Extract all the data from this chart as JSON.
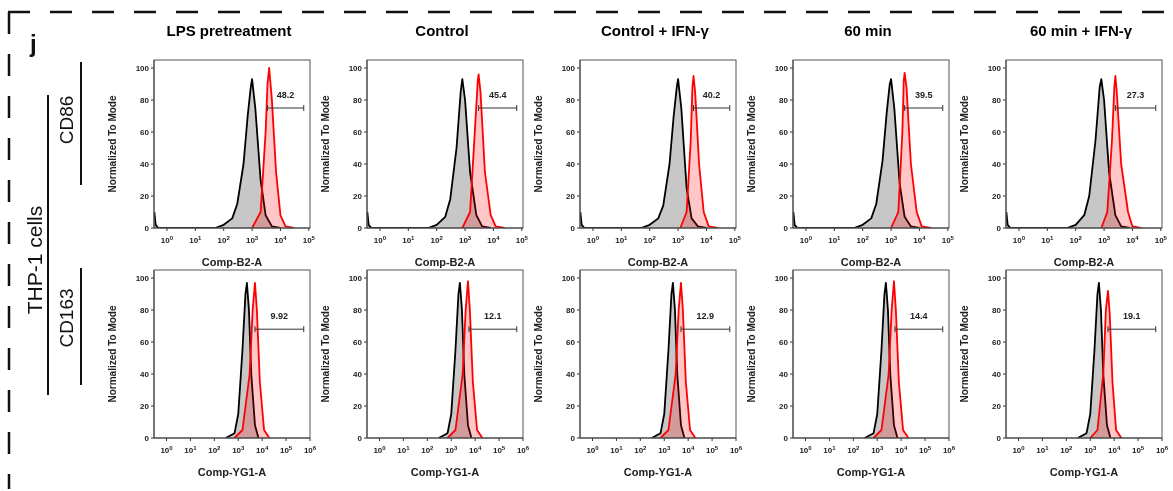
{
  "chart_data": [
    {
      "type": "area",
      "title": "LPS pretreatment",
      "xlabel": "Comp-B2-A",
      "ylabel": "Normalized To Mode",
      "log": "x",
      "xlim": [
        0.35,
        110000
      ],
      "xticks": [
        {
          "value": 1,
          "label": "10$^{0}$"
        },
        {
          "value": 10,
          "label": "10$^{1}$"
        },
        {
          "value": 100,
          "label": "10$^{2}$"
        },
        {
          "value": 1000,
          "label": "10$^{3}$"
        },
        {
          "value": 10000,
          "label": "10$^{4}$"
        },
        {
          "value": 100000,
          "label": "10$^{5}$"
        }
      ],
      "ylim": [
        0,
        105
      ],
      "yticks": [
        0,
        20,
        40,
        60,
        80,
        100
      ],
      "series": [
        {
          "color": "#000000",
          "x": [
            0.36,
            0.4,
            0.5,
            50,
            100,
            200,
            300,
            500,
            700,
            900,
            1000,
            1300,
            2000,
            3000,
            5000,
            10000
          ],
          "values": [
            10,
            2,
            0,
            0,
            2,
            6,
            15,
            40,
            70,
            88,
            93,
            75,
            30,
            8,
            1,
            0
          ]
        },
        {
          "color": "#ff0000",
          "x": [
            1000,
            2000,
            3000,
            3500,
            4000,
            5000,
            7000,
            10000,
            15000,
            30000
          ],
          "values": [
            0,
            10,
            60,
            90,
            100,
            80,
            35,
            8,
            1,
            0
          ]
        }
      ],
      "annotations": [
        "j",
        "THP-1 cells",
        "CD86",
        {
          "text": "48.2",
          "x": 3500,
          "y": 75
        }
      ]
    },
    {
      "type": "area",
      "title": "Control",
      "xlabel": "Comp-B2-A",
      "ylabel": "Normalized To Mode",
      "log": "x",
      "xlim": [
        0.35,
        110000
      ],
      "xticks": [
        {
          "value": 1,
          "label": "10$^{0}$"
        },
        {
          "value": 10,
          "label": "10$^{1}$"
        },
        {
          "value": 100,
          "label": "10$^{2}$"
        },
        {
          "value": 1000,
          "label": "10$^{3}$"
        },
        {
          "value": 10000,
          "label": "10$^{4}$"
        },
        {
          "value": 100000,
          "label": "10$^{5}$"
        }
      ],
      "ylim": [
        0,
        105
      ],
      "yticks": [
        0,
        20,
        40,
        60,
        80,
        100
      ],
      "series": [
        {
          "color": "#000000",
          "x": [
            0.36,
            0.4,
            0.5,
            50,
            100,
            200,
            300,
            500,
            700,
            800,
            1000,
            1500,
            2500,
            4000,
            8000
          ],
          "values": [
            10,
            2,
            0,
            0,
            2,
            7,
            18,
            50,
            85,
            93,
            80,
            35,
            8,
            1,
            0
          ]
        },
        {
          "color": "#ff0000",
          "x": [
            800,
            1500,
            2200,
            2800,
            3000,
            3500,
            5000,
            8000,
            12000,
            25000
          ],
          "values": [
            0,
            10,
            60,
            92,
            96,
            85,
            35,
            8,
            1,
            0
          ]
        }
      ],
      "annotations": [
        {
          "text": "45.4",
          "x": 3000,
          "y": 75
        }
      ]
    },
    {
      "type": "area",
      "title": "Control + IFN-γ",
      "xlabel": "Comp-B2-A",
      "ylabel": "Normalized To Mode",
      "log": "x",
      "xlim": [
        0.35,
        110000
      ],
      "xticks": [
        {
          "value": 1,
          "label": "10$^{0}$"
        },
        {
          "value": 10,
          "label": "10$^{1}$"
        },
        {
          "value": 100,
          "label": "10$^{2}$"
        },
        {
          "value": 1000,
          "label": "10$^{3}$"
        },
        {
          "value": 10000,
          "label": "10$^{4}$"
        },
        {
          "value": 100000,
          "label": "10$^{5}$"
        }
      ],
      "ylim": [
        0,
        105
      ],
      "yticks": [
        0,
        20,
        40,
        60,
        80,
        100
      ],
      "series": [
        {
          "color": "#000000",
          "x": [
            0.36,
            0.4,
            0.5,
            50,
            100,
            200,
            300,
            500,
            700,
            900,
            1000,
            1300,
            2000,
            3000,
            5000,
            10000
          ],
          "values": [
            10,
            2,
            0,
            0,
            2,
            6,
            14,
            40,
            70,
            88,
            93,
            75,
            25,
            6,
            1,
            0
          ]
        },
        {
          "color": "#ff0000",
          "x": [
            1200,
            2000,
            2800,
            3200,
            3500,
            4000,
            5500,
            8000,
            12000,
            25000
          ],
          "values": [
            0,
            10,
            55,
            88,
            95,
            85,
            40,
            10,
            1,
            0
          ]
        }
      ],
      "annotations": [
        {
          "text": "40.2",
          "x": 3500,
          "y": 75
        }
      ]
    },
    {
      "type": "area",
      "title": "60 min",
      "xlabel": "Comp-B2-A",
      "ylabel": "Normalized To Mode",
      "log": "x",
      "xlim": [
        0.35,
        110000
      ],
      "xticks": [
        {
          "value": 1,
          "label": "10$^{0}$"
        },
        {
          "value": 10,
          "label": "10$^{1}$"
        },
        {
          "value": 100,
          "label": "10$^{2}$"
        },
        {
          "value": 1000,
          "label": "10$^{3}$"
        },
        {
          "value": 10000,
          "label": "10$^{4}$"
        },
        {
          "value": 100000,
          "label": "10$^{5}$"
        }
      ],
      "ylim": [
        0,
        105
      ],
      "yticks": [
        0,
        20,
        40,
        60,
        80,
        100
      ],
      "series": [
        {
          "color": "#000000",
          "x": [
            0.36,
            0.4,
            0.5,
            50,
            100,
            200,
            300,
            500,
            700,
            900,
            1000,
            1300,
            2000,
            3000,
            5000,
            10000
          ],
          "values": [
            10,
            2,
            0,
            0,
            2,
            6,
            15,
            42,
            72,
            90,
            93,
            75,
            28,
            7,
            1,
            0
          ]
        },
        {
          "color": "#ff0000",
          "x": [
            1000,
            1800,
            2500,
            2800,
            3000,
            3500,
            5000,
            8000,
            12000,
            25000
          ],
          "values": [
            0,
            10,
            60,
            92,
            97,
            88,
            40,
            10,
            1,
            0
          ]
        }
      ],
      "annotations": [
        {
          "text": "39.5",
          "x": 3000,
          "y": 75
        }
      ]
    },
    {
      "type": "area",
      "title": "60 min + IFN-γ",
      "xlabel": "Comp-B2-A",
      "ylabel": "Normalized To Mode",
      "log": "x",
      "xlim": [
        0.35,
        110000
      ],
      "xticks": [
        {
          "value": 1,
          "label": "10$^{0}$"
        },
        {
          "value": 10,
          "label": "10$^{1}$"
        },
        {
          "value": 100,
          "label": "10$^{2}$"
        },
        {
          "value": 1000,
          "label": "10$^{3}$"
        },
        {
          "value": 10000,
          "label": "10$^{4}$"
        },
        {
          "value": 100000,
          "label": "10$^{5}$"
        }
      ],
      "ylim": [
        0,
        105
      ],
      "yticks": [
        0,
        20,
        40,
        60,
        80,
        100
      ],
      "series": [
        {
          "color": "#000000",
          "x": [
            0.36,
            0.4,
            0.5,
            50,
            100,
            200,
            300,
            500,
            700,
            800,
            1000,
            1500,
            2500,
            4000,
            8000
          ],
          "values": [
            10,
            2,
            0,
            0,
            2,
            8,
            20,
            55,
            88,
            93,
            80,
            35,
            8,
            1,
            0
          ]
        },
        {
          "color": "#ff0000",
          "x": [
            800,
            1300,
            1900,
            2300,
            2500,
            2800,
            4000,
            7000,
            10000,
            20000
          ],
          "values": [
            0,
            10,
            55,
            88,
            95,
            85,
            40,
            10,
            1,
            0
          ]
        }
      ],
      "annotations": [
        {
          "text": "27.3",
          "x": 2500,
          "y": 75
        }
      ]
    },
    {
      "type": "area",
      "xlabel": "Comp-YG1-A",
      "ylabel": "Normalized To Mode",
      "log": "x",
      "xlim": [
        0.3,
        1000000
      ],
      "xticks": [
        {
          "value": 1,
          "label": "10$^{0}$"
        },
        {
          "value": 10,
          "label": "10$^{1}$"
        },
        {
          "value": 100,
          "label": "10$^{2}$"
        },
        {
          "value": 1000,
          "label": "10$^{3}$"
        },
        {
          "value": 10000,
          "label": "10$^{4}$"
        },
        {
          "value": 100000,
          "label": "10$^{5}$"
        },
        {
          "value": 1000000,
          "label": "10$^{6}$"
        }
      ],
      "ylim": [
        0,
        105
      ],
      "yticks": [
        0,
        20,
        40,
        60,
        80,
        100
      ],
      "series": [
        {
          "color": "#000000",
          "x": [
            300,
            700,
            1000,
            1500,
            2000,
            2300,
            2800,
            3500,
            5000,
            7000
          ],
          "values": [
            0,
            3,
            15,
            55,
            90,
            97,
            80,
            40,
            8,
            0
          ]
        },
        {
          "color": "#ff0000",
          "x": [
            700,
            1500,
            3000,
            4000,
            5000,
            6000,
            8000,
            12000,
            20000
          ],
          "values": [
            0,
            5,
            40,
            80,
            97,
            80,
            35,
            5,
            0
          ]
        }
      ],
      "annotations": [
        "CD163",
        {
          "text": "9.92",
          "x": 5000,
          "y": 68
        }
      ]
    },
    {
      "type": "area",
      "xlabel": "Comp-YG1-A",
      "ylabel": "Normalized To Mode",
      "log": "x",
      "xlim": [
        0.3,
        1000000
      ],
      "xticks": [
        {
          "value": 1,
          "label": "10$^{0}$"
        },
        {
          "value": 10,
          "label": "10$^{1}$"
        },
        {
          "value": 100,
          "label": "10$^{2}$"
        },
        {
          "value": 1000,
          "label": "10$^{3}$"
        },
        {
          "value": 10000,
          "label": "10$^{4}$"
        },
        {
          "value": 100000,
          "label": "10$^{5}$"
        },
        {
          "value": 1000000,
          "label": "10$^{6}$"
        }
      ],
      "ylim": [
        0,
        105
      ],
      "yticks": [
        0,
        20,
        40,
        60,
        80,
        100
      ],
      "series": [
        {
          "color": "#000000",
          "x": [
            300,
            700,
            1000,
            1500,
            2000,
            2300,
            2800,
            3500,
            5000,
            7000
          ],
          "values": [
            0,
            3,
            15,
            55,
            90,
            97,
            80,
            40,
            8,
            0
          ]
        },
        {
          "color": "#ff0000",
          "x": [
            700,
            1500,
            3000,
            4000,
            5000,
            6000,
            8000,
            12000,
            20000
          ],
          "values": [
            0,
            5,
            40,
            80,
            98,
            80,
            35,
            5,
            0
          ]
        }
      ],
      "annotations": [
        {
          "text": "12.1",
          "x": 5500,
          "y": 68
        }
      ]
    },
    {
      "type": "area",
      "xlabel": "Comp-YG1-A",
      "ylabel": "Normalized To Mode",
      "log": "x",
      "xlim": [
        0.3,
        1000000
      ],
      "xticks": [
        {
          "value": 1,
          "label": "10$^{0}$"
        },
        {
          "value": 10,
          "label": "10$^{1}$"
        },
        {
          "value": 100,
          "label": "10$^{2}$"
        },
        {
          "value": 1000,
          "label": "10$^{3}$"
        },
        {
          "value": 10000,
          "label": "10$^{4}$"
        },
        {
          "value": 100000,
          "label": "10$^{5}$"
        },
        {
          "value": 1000000,
          "label": "10$^{6}$"
        }
      ],
      "ylim": [
        0,
        105
      ],
      "yticks": [
        0,
        20,
        40,
        60,
        80,
        100
      ],
      "series": [
        {
          "color": "#000000",
          "x": [
            300,
            700,
            1000,
            1500,
            2000,
            2300,
            2800,
            3500,
            5000,
            7000
          ],
          "values": [
            0,
            3,
            15,
            55,
            90,
            97,
            80,
            40,
            8,
            0
          ]
        },
        {
          "color": "#ff0000",
          "x": [
            700,
            1500,
            3000,
            4000,
            5000,
            6000,
            8000,
            12000,
            20000
          ],
          "values": [
            0,
            5,
            40,
            80,
            97,
            80,
            35,
            5,
            0
          ]
        }
      ],
      "annotations": [
        {
          "text": "12.9",
          "x": 5000,
          "y": 68
        }
      ]
    },
    {
      "type": "area",
      "xlabel": "Comp-YG1-A",
      "ylabel": "Normalized To Mode",
      "log": "x",
      "xlim": [
        0.3,
        1000000
      ],
      "xticks": [
        {
          "value": 1,
          "label": "10$^{0}$"
        },
        {
          "value": 10,
          "label": "10$^{1}$"
        },
        {
          "value": 100,
          "label": "10$^{2}$"
        },
        {
          "value": 1000,
          "label": "10$^{3}$"
        },
        {
          "value": 10000,
          "label": "10$^{4}$"
        },
        {
          "value": 100000,
          "label": "10$^{5}$"
        },
        {
          "value": 1000000,
          "label": "10$^{6}$"
        }
      ],
      "ylim": [
        0,
        105
      ],
      "yticks": [
        0,
        20,
        40,
        60,
        80,
        100
      ],
      "series": [
        {
          "color": "#000000",
          "x": [
            300,
            700,
            1000,
            1500,
            2000,
            2300,
            2800,
            3500,
            5000,
            7000
          ],
          "values": [
            0,
            3,
            15,
            55,
            90,
            97,
            80,
            40,
            8,
            0
          ]
        },
        {
          "color": "#ff0000",
          "x": [
            700,
            1500,
            3000,
            4000,
            5000,
            6000,
            8000,
            12000,
            20000
          ],
          "values": [
            0,
            5,
            40,
            80,
            98,
            80,
            35,
            5,
            0
          ]
        }
      ],
      "annotations": [
        {
          "text": "14.4",
          "x": 5500,
          "y": 68
        }
      ]
    },
    {
      "type": "area",
      "xlabel": "Comp-YG1-A",
      "ylabel": "Normalized To Mode",
      "log": "x",
      "xlim": [
        0.3,
        1000000
      ],
      "xticks": [
        {
          "value": 1,
          "label": "10$^{0}$"
        },
        {
          "value": 10,
          "label": "10$^{1}$"
        },
        {
          "value": 100,
          "label": "10$^{2}$"
        },
        {
          "value": 1000,
          "label": "10$^{3}$"
        },
        {
          "value": 10000,
          "label": "10$^{4}$"
        },
        {
          "value": 100000,
          "label": "10$^{5}$"
        },
        {
          "value": 1000000,
          "label": "10$^{6}$"
        }
      ],
      "ylim": [
        0,
        105
      ],
      "yticks": [
        0,
        20,
        40,
        60,
        80,
        100
      ],
      "series": [
        {
          "color": "#000000",
          "x": [
            300,
            700,
            1000,
            1500,
            2000,
            2300,
            2800,
            3500,
            5000,
            7000
          ],
          "values": [
            0,
            3,
            15,
            55,
            90,
            97,
            80,
            40,
            8,
            0
          ]
        },
        {
          "color": "#ff0000",
          "x": [
            1000,
            2000,
            3500,
            4500,
            5500,
            6500,
            8500,
            12000,
            20000
          ],
          "values": [
            0,
            5,
            40,
            80,
            92,
            78,
            35,
            5,
            0
          ]
        }
      ],
      "annotations": [
        {
          "text": "19.1",
          "x": 5500,
          "y": 68
        }
      ]
    }
  ]
}
